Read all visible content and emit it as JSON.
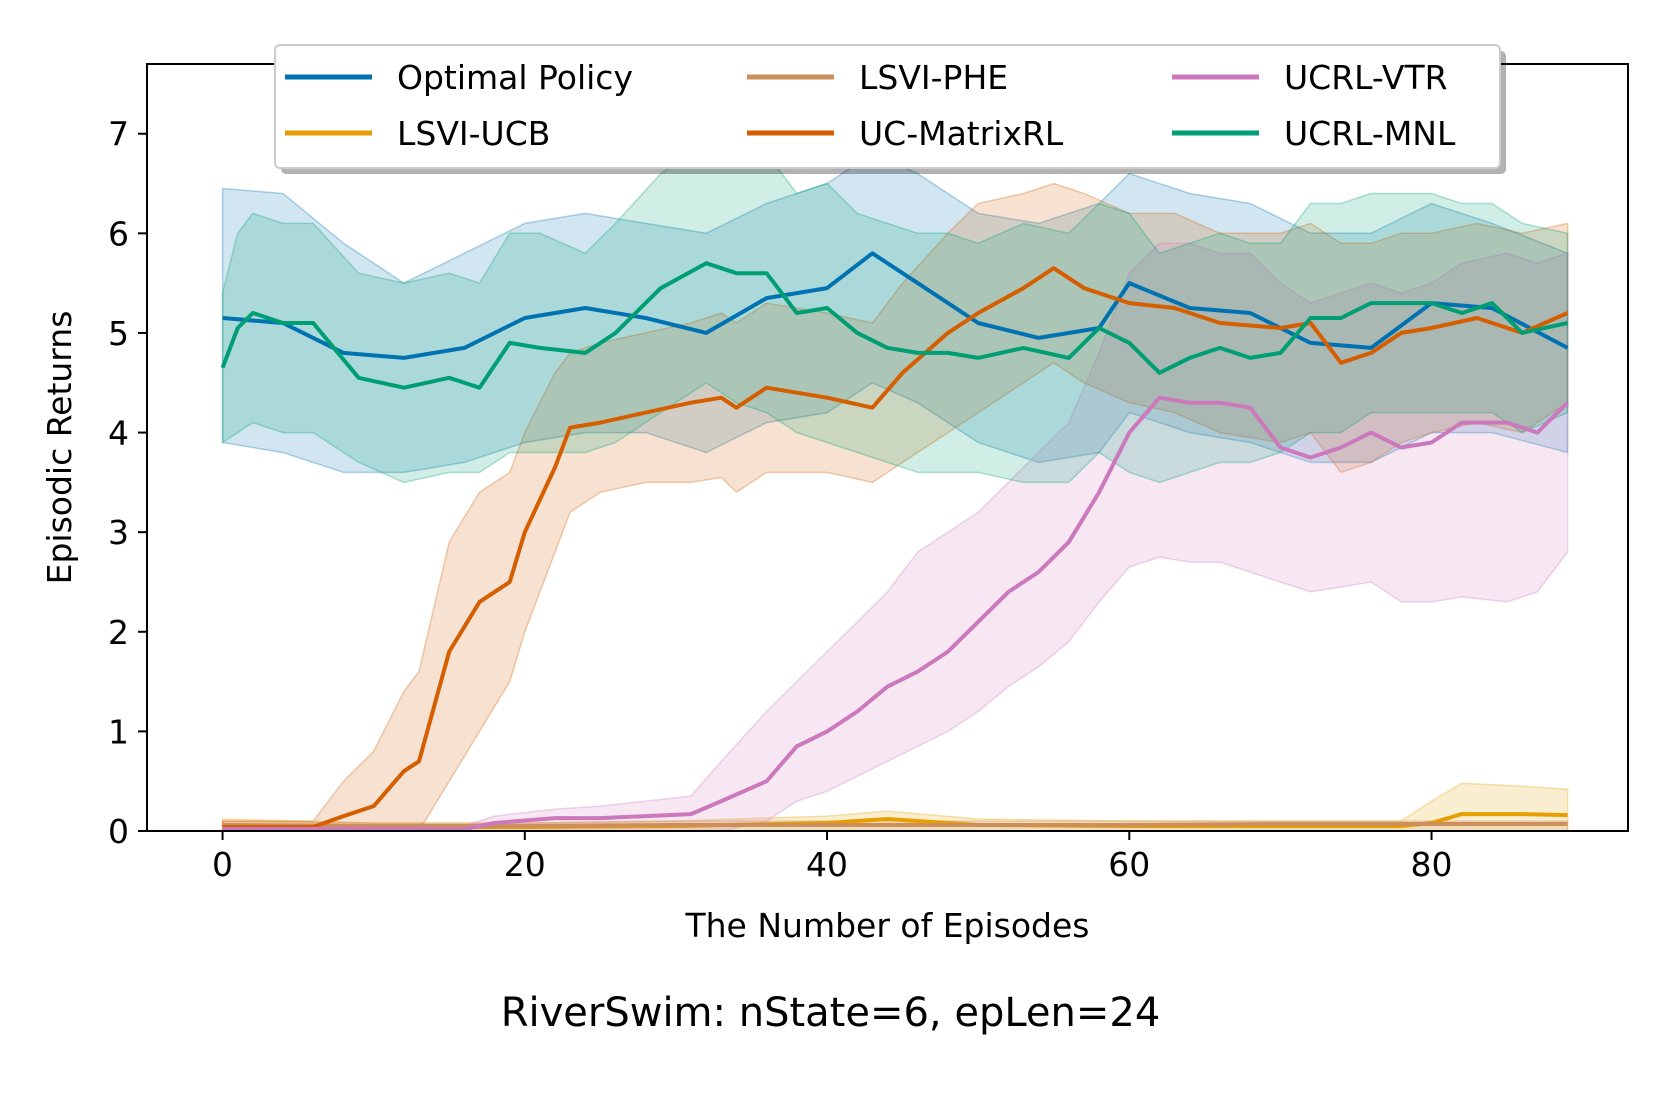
{
  "chart_data": {
    "type": "line",
    "title": "RiverSwim: nState=6, epLen=24",
    "xlabel": "The Number of Episodes",
    "ylabel": "Episodic Returns",
    "xlim": [
      -5,
      93
    ],
    "ylim": [
      0,
      7.7
    ],
    "xticks": [
      0,
      20,
      40,
      60,
      80
    ],
    "yticks": [
      0,
      1,
      2,
      3,
      4,
      5,
      6,
      7
    ],
    "grid": false,
    "legend_position": "top",
    "legend_columns": 3,
    "band": "shaded range around each mean curve",
    "series": [
      {
        "name": "Optimal Policy",
        "color": "#0072b2",
        "x": [
          0,
          4,
          8,
          12,
          16,
          20,
          24,
          28,
          32,
          36,
          40,
          43,
          46,
          50,
          54,
          58,
          60,
          64,
          68,
          72,
          76,
          80,
          84,
          89
        ],
        "y": [
          5.15,
          5.1,
          4.8,
          4.75,
          4.85,
          5.15,
          5.25,
          5.15,
          5.0,
          5.35,
          5.45,
          5.8,
          5.5,
          5.1,
          4.95,
          5.05,
          5.5,
          5.25,
          5.2,
          4.9,
          4.85,
          5.3,
          5.25,
          4.85
        ],
        "lower": [
          3.9,
          3.8,
          3.6,
          3.6,
          3.7,
          3.9,
          4.0,
          4.0,
          3.8,
          4.1,
          4.2,
          4.5,
          4.3,
          3.9,
          3.7,
          3.8,
          4.2,
          4.0,
          3.9,
          3.7,
          3.7,
          4.0,
          4.0,
          3.8
        ],
        "upper": [
          6.45,
          6.4,
          5.9,
          5.5,
          5.8,
          6.1,
          6.2,
          6.1,
          6.0,
          6.3,
          6.5,
          6.8,
          6.6,
          6.2,
          6.1,
          6.3,
          6.6,
          6.4,
          6.3,
          6.0,
          6.0,
          6.3,
          6.1,
          5.8
        ]
      },
      {
        "name": "LSVI-UCB",
        "color": "#e69f00",
        "x": [
          0,
          10,
          20,
          30,
          40,
          44,
          50,
          60,
          70,
          78,
          80,
          82,
          86,
          89
        ],
        "y": [
          0.05,
          0.04,
          0.04,
          0.05,
          0.08,
          0.12,
          0.06,
          0.05,
          0.05,
          0.05,
          0.08,
          0.17,
          0.17,
          0.16
        ],
        "lower": [
          0.0,
          0.0,
          0.0,
          0.0,
          0.0,
          0.0,
          0.0,
          0.0,
          0.0,
          0.0,
          0.0,
          0.0,
          0.0,
          0.0
        ],
        "upper": [
          0.12,
          0.08,
          0.08,
          0.1,
          0.15,
          0.2,
          0.12,
          0.1,
          0.1,
          0.1,
          0.3,
          0.48,
          0.45,
          0.42
        ]
      },
      {
        "name": "LSVI-PHE",
        "color": "#cc8f5b",
        "x": [
          0,
          10,
          20,
          30,
          40,
          50,
          60,
          70,
          80,
          89
        ],
        "y": [
          0.06,
          0.05,
          0.05,
          0.06,
          0.06,
          0.06,
          0.06,
          0.07,
          0.07,
          0.07
        ],
        "lower": [
          0.0,
          0.0,
          0.0,
          0.0,
          0.0,
          0.0,
          0.0,
          0.0,
          0.0,
          0.0
        ],
        "upper": [
          0.1,
          0.08,
          0.08,
          0.1,
          0.1,
          0.1,
          0.1,
          0.1,
          0.1,
          0.1
        ]
      },
      {
        "name": "UC-MatrixRL",
        "color": "#d55e00",
        "x": [
          0,
          6,
          8,
          10,
          12,
          13,
          15,
          17,
          19,
          20,
          22,
          23,
          25,
          28,
          31,
          33,
          34,
          36,
          40,
          43,
          45,
          48,
          50,
          53,
          55,
          57,
          60,
          63,
          66,
          70,
          72,
          74,
          76,
          78,
          80,
          83,
          86,
          89
        ],
        "y": [
          0.04,
          0.04,
          0.15,
          0.25,
          0.6,
          0.7,
          1.8,
          2.3,
          2.5,
          3.0,
          3.65,
          4.05,
          4.1,
          4.2,
          4.3,
          4.35,
          4.25,
          4.45,
          4.35,
          4.25,
          4.6,
          5.0,
          5.2,
          5.45,
          5.65,
          5.45,
          5.3,
          5.25,
          5.1,
          5.05,
          5.1,
          4.7,
          4.8,
          5.0,
          5.05,
          5.15,
          5.0,
          5.2
        ],
        "lower": [
          0.0,
          0.0,
          0.0,
          0.0,
          0.0,
          0.0,
          0.5,
          1.0,
          1.5,
          2.0,
          2.8,
          3.2,
          3.4,
          3.5,
          3.5,
          3.55,
          3.4,
          3.6,
          3.6,
          3.5,
          3.7,
          4.0,
          4.2,
          4.5,
          4.7,
          4.5,
          4.3,
          4.2,
          4.0,
          3.9,
          4.0,
          3.6,
          3.7,
          3.9,
          4.0,
          4.1,
          4.0,
          4.3
        ],
        "upper": [
          0.1,
          0.1,
          0.5,
          0.8,
          1.4,
          1.6,
          2.9,
          3.4,
          3.6,
          4.0,
          4.6,
          4.8,
          4.9,
          5.0,
          5.1,
          5.2,
          5.1,
          5.3,
          5.2,
          5.1,
          5.5,
          6.0,
          6.3,
          6.4,
          6.5,
          6.4,
          6.2,
          6.2,
          6.0,
          6.0,
          6.1,
          5.9,
          5.9,
          6.0,
          6.0,
          6.1,
          6.0,
          6.1
        ]
      },
      {
        "name": "UCRL-VTR",
        "color": "#cc78bc",
        "x": [
          0,
          16,
          18,
          22,
          25,
          28,
          31,
          33,
          36,
          38,
          40,
          42,
          44,
          46,
          48,
          50,
          52,
          54,
          56,
          58,
          60,
          62,
          64,
          66,
          68,
          70,
          72,
          74,
          76,
          78,
          80,
          82,
          85,
          87,
          89
        ],
        "y": [
          0.02,
          0.02,
          0.08,
          0.13,
          0.13,
          0.15,
          0.17,
          0.3,
          0.5,
          0.85,
          1.0,
          1.2,
          1.45,
          1.6,
          1.8,
          2.1,
          2.4,
          2.6,
          2.9,
          3.4,
          4.0,
          4.35,
          4.3,
          4.3,
          4.25,
          3.85,
          3.75,
          3.85,
          4.0,
          3.85,
          3.9,
          4.1,
          4.1,
          4.0,
          4.3
        ],
        "lower": [
          0.0,
          0.0,
          0.0,
          0.0,
          0.0,
          0.0,
          0.0,
          0.0,
          0.1,
          0.3,
          0.4,
          0.55,
          0.7,
          0.85,
          1.0,
          1.2,
          1.45,
          1.65,
          1.9,
          2.3,
          2.65,
          2.75,
          2.7,
          2.7,
          2.6,
          2.5,
          2.4,
          2.45,
          2.5,
          2.3,
          2.3,
          2.35,
          2.3,
          2.4,
          2.8
        ],
        "upper": [
          0.05,
          0.05,
          0.15,
          0.22,
          0.25,
          0.3,
          0.35,
          0.7,
          1.2,
          1.5,
          1.8,
          2.1,
          2.4,
          2.8,
          3.0,
          3.2,
          3.5,
          3.8,
          4.1,
          4.8,
          5.6,
          5.9,
          5.9,
          5.8,
          5.8,
          5.5,
          5.3,
          5.4,
          5.5,
          5.4,
          5.5,
          5.7,
          5.8,
          5.7,
          5.8
        ]
      },
      {
        "name": "UCRL-MNL",
        "color": "#009e73",
        "x": [
          0,
          1,
          2,
          4,
          6,
          9,
          12,
          15,
          17,
          19,
          21,
          24,
          26,
          29,
          32,
          34,
          36,
          38,
          40,
          42,
          44,
          46,
          48,
          50,
          53,
          56,
          58,
          60,
          62,
          64,
          66,
          68,
          70,
          72,
          74,
          76,
          78,
          80,
          82,
          84,
          86,
          89
        ],
        "y": [
          4.65,
          5.05,
          5.2,
          5.1,
          5.1,
          4.55,
          4.45,
          4.55,
          4.45,
          4.9,
          4.85,
          4.8,
          5.0,
          5.45,
          5.7,
          5.6,
          5.6,
          5.2,
          5.25,
          5.0,
          4.85,
          4.8,
          4.8,
          4.75,
          4.85,
          4.75,
          5.05,
          4.9,
          4.6,
          4.75,
          4.85,
          4.75,
          4.8,
          5.15,
          5.15,
          5.3,
          5.3,
          5.3,
          5.2,
          5.3,
          5.0,
          5.1
        ],
        "lower": [
          3.9,
          4.0,
          4.1,
          4.0,
          4.0,
          3.7,
          3.5,
          3.6,
          3.6,
          3.8,
          3.8,
          3.8,
          3.9,
          4.2,
          4.5,
          4.3,
          4.2,
          4.0,
          3.9,
          3.8,
          3.7,
          3.6,
          3.6,
          3.6,
          3.5,
          3.5,
          3.8,
          3.6,
          3.5,
          3.6,
          3.7,
          3.7,
          3.8,
          4.0,
          4.0,
          4.2,
          4.2,
          4.2,
          4.2,
          4.2,
          4.0,
          4.2
        ],
        "upper": [
          5.4,
          6.0,
          6.2,
          6.1,
          6.1,
          5.6,
          5.5,
          5.6,
          5.5,
          6.0,
          6.0,
          5.8,
          6.1,
          6.6,
          6.9,
          6.8,
          6.8,
          6.4,
          6.5,
          6.2,
          6.1,
          6.0,
          6.0,
          5.9,
          6.1,
          6.0,
          6.3,
          6.2,
          5.8,
          5.9,
          6.0,
          5.9,
          5.9,
          6.3,
          6.3,
          6.4,
          6.4,
          6.4,
          6.3,
          6.3,
          6.1,
          6.0
        ]
      }
    ]
  }
}
